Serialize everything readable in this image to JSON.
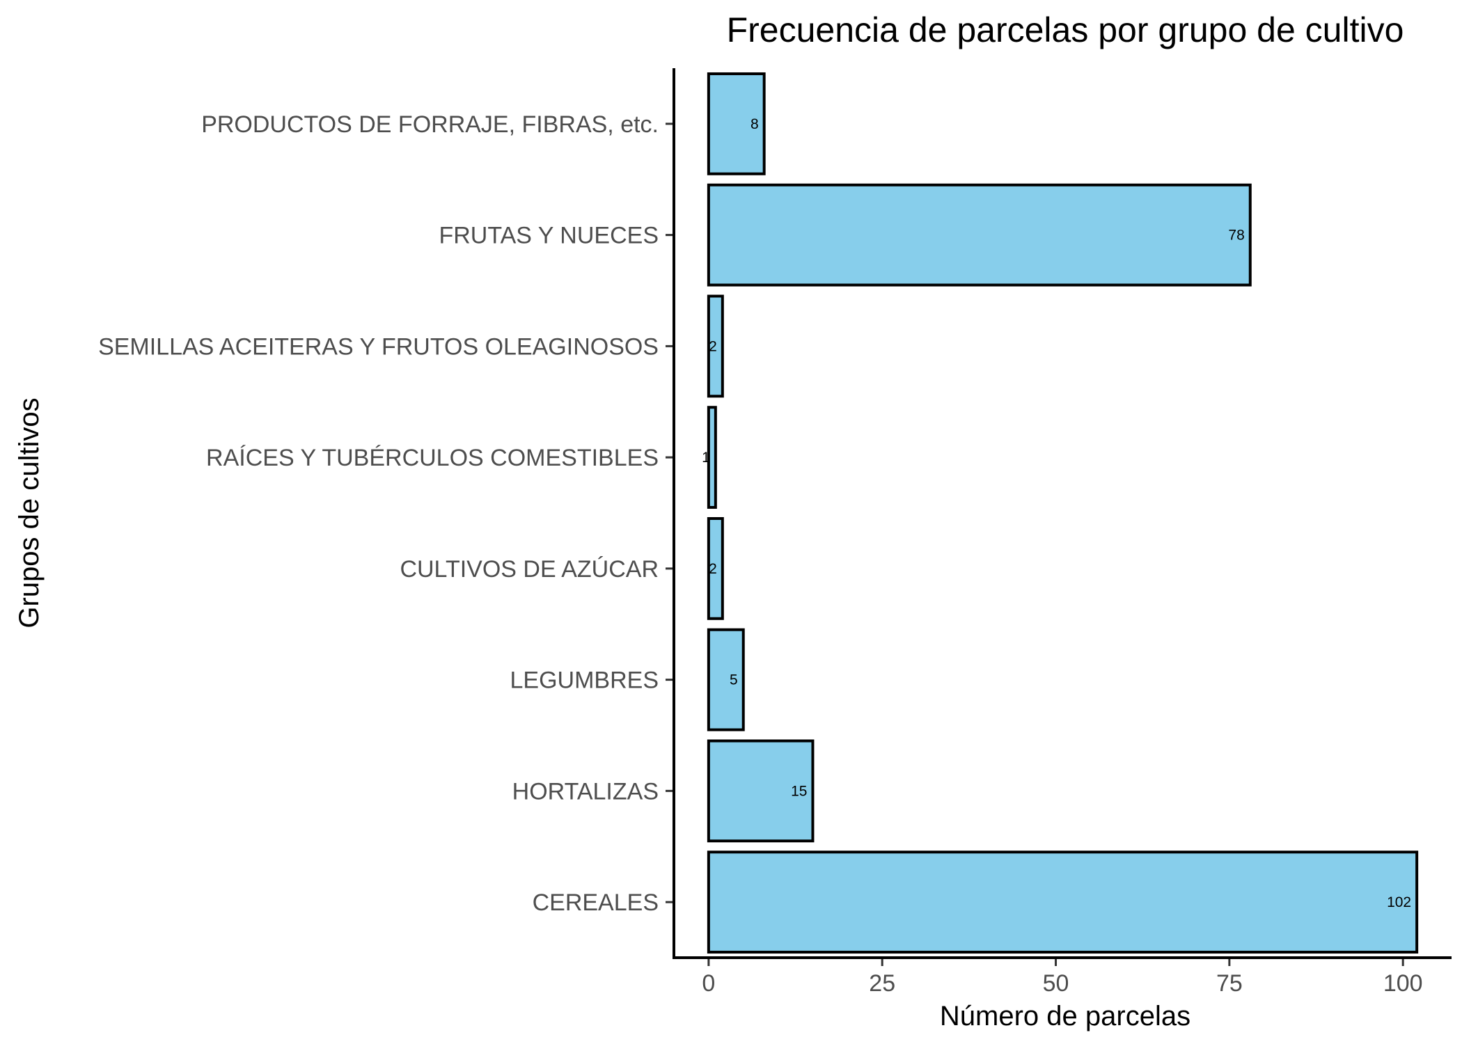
{
  "chart_data": {
    "type": "bar",
    "orientation": "horizontal",
    "title": "Frecuencia de parcelas por grupo de cultivo",
    "xlabel": "Número de parcelas",
    "ylabel": "Grupos de cultivos",
    "categories": [
      "PRODUCTOS DE FORRAJE, FIBRAS, etc.",
      "FRUTAS Y NUECES",
      "SEMILLAS ACEITERAS Y FRUTOS OLEAGINOSOS",
      "RAÍCES Y TUBÉRCULOS COMESTIBLES",
      "CULTIVOS DE AZÚCAR",
      "LEGUMBRES",
      "HORTALIZAS",
      "CEREALES"
    ],
    "values": [
      8,
      78,
      2,
      1,
      2,
      5,
      15,
      102
    ],
    "data_labels": [
      "8",
      "78",
      "2",
      "1",
      "2",
      "5",
      "15",
      "102"
    ],
    "xticks": [
      0,
      25,
      50,
      75,
      100
    ],
    "xtick_labels": [
      "0",
      "25",
      "50",
      "75",
      "100"
    ],
    "xlim": [
      -5,
      107
    ],
    "grid": false,
    "legend": "none",
    "colors": {
      "bar_fill": "#87ceeb",
      "bar_border": "#000000",
      "axis": "#000000",
      "label_text": "#4d4d4d"
    }
  }
}
